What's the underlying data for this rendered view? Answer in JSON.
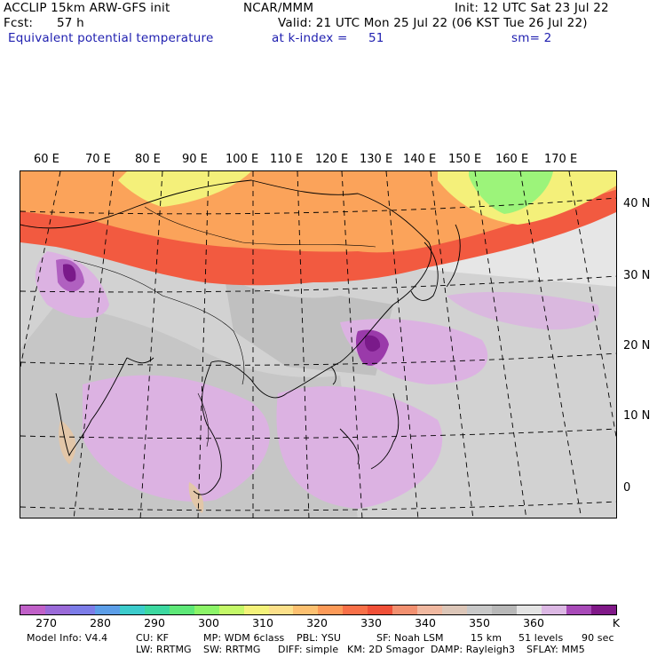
{
  "header": {
    "model_line": "ACCLIP 15km ARW-GFS init",
    "center": "NCAR/MMM",
    "init": "Init: 12 UTC Sat 23 Jul 22",
    "fcst_label": "Fcst:",
    "fcst_value": "57 h",
    "valid": "Valid: 21 UTC Mon 25 Jul 22 (06 KST Tue 26 Jul 22)",
    "field": "Equivalent potential temperature",
    "level": "at k-index =",
    "level_value": "51",
    "smoothing": "sm= 2"
  },
  "map": {
    "lon_labels": [
      "60 E",
      "70 E",
      "80 E",
      "90 E",
      "100 E",
      "110 E",
      "120 E",
      "130 E",
      "140 E",
      "150 E",
      "160 E",
      "170 E"
    ],
    "lat_labels": [
      "40 N",
      "30 N",
      "20 N",
      "10 N",
      "0"
    ],
    "colors": {
      "ocean_bg": "#e8e8e8",
      "red_band": "#f25a40",
      "orange_band": "#fba35a",
      "yellow_band": "#f4f07a",
      "green_band": "#9cf47a",
      "purple_light": "#dcb2e2",
      "purple_mid": "#b060c0",
      "purple_dark": "#7a1a8a",
      "gray": "#bdbdbd"
    }
  },
  "colorbar": {
    "unit": "K",
    "labels": [
      "270",
      "280",
      "290",
      "300",
      "310",
      "320",
      "330",
      "340",
      "350",
      "360"
    ],
    "colors": [
      "#c060c8",
      "#9a6ad8",
      "#7c7ce8",
      "#5c9ee8",
      "#3ccccc",
      "#3cd8a0",
      "#5ee878",
      "#8cf468",
      "#c4f868",
      "#f4f27a",
      "#fce08a",
      "#fcc070",
      "#fc9a58",
      "#f87048",
      "#f05038",
      "#f29070",
      "#f0b8a0",
      "#dcc6b8",
      "#c8c8c8",
      "#b8b8b8",
      "#e4e4e4",
      "#dcb8e4",
      "#a84ab8",
      "#801888"
    ]
  },
  "footer": {
    "line1": [
      "Model Info: V4.4",
      "CU: KF",
      "MP: WDM 6class",
      "PBL: YSU",
      "SF: Noah LSM",
      "15 km",
      "51 levels",
      "90 sec"
    ],
    "line2": [
      "LW: RRTMG",
      "SW: RRTMG",
      "DIFF: simple",
      "KM: 2D Smagor",
      "DAMP: Rayleigh3",
      "SFLAY: MM5"
    ]
  }
}
